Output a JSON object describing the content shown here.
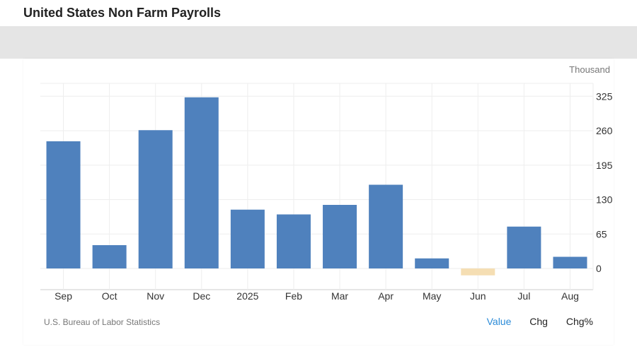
{
  "page": {
    "title": "United States Non Farm Payrolls"
  },
  "footer": {
    "source": "U.S. Bureau of Labor Statistics",
    "tabs": [
      "Value",
      "Chg",
      "Chg%"
    ],
    "active_tab": "Value"
  },
  "colors": {
    "positive": "#4f81bd",
    "negative": "#f5deb3",
    "grid": "#eeeeee",
    "active_tab": "#2b8bd8"
  },
  "chart_data": {
    "type": "bar",
    "unit_label": "Thousand",
    "categories": [
      "Sep",
      "Oct",
      "Nov",
      "Dec",
      "2025",
      "Feb",
      "Mar",
      "Apr",
      "May",
      "Jun",
      "Jul",
      "Aug"
    ],
    "values": [
      240,
      44,
      261,
      323,
      111,
      102,
      120,
      158,
      19,
      -13,
      79,
      22
    ],
    "yticks": [
      0,
      65,
      130,
      195,
      260,
      325
    ],
    "ylim": [
      -45,
      340
    ],
    "grid": true,
    "y_axis_side": "right"
  }
}
